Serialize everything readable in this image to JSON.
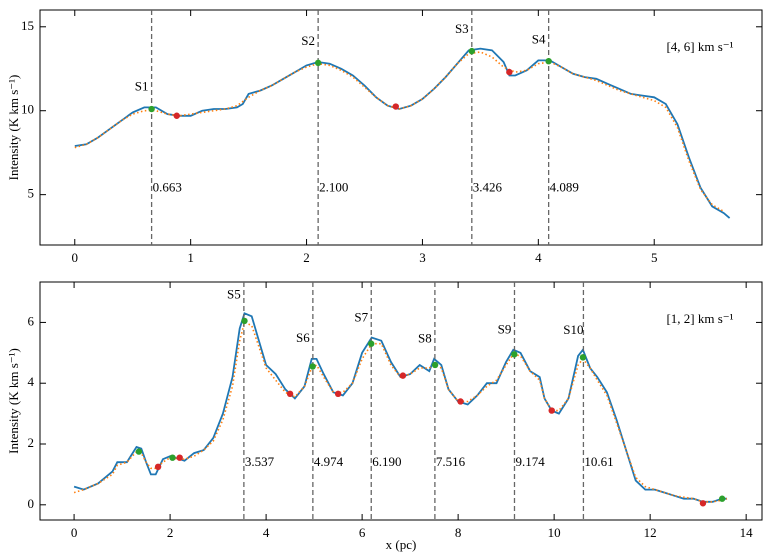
{
  "chart_data": [
    {
      "type": "line",
      "ylabel": "Intensity  (K km s⁻¹)",
      "annotation": "[4, 6] km s⁻¹",
      "xlim": [
        -0.3,
        5.93
      ],
      "ylim": [
        2,
        16
      ],
      "xticks": [
        0,
        1,
        2,
        3,
        4,
        5
      ],
      "yticks": [
        5,
        10,
        15
      ],
      "series": [
        {
          "color": "#1f77b4",
          "style": "solid",
          "x": [
            0,
            0.1,
            0.2,
            0.3,
            0.4,
            0.5,
            0.6,
            0.7,
            0.8,
            0.9,
            1.0,
            1.1,
            1.2,
            1.3,
            1.4,
            1.45,
            1.5,
            1.6,
            1.7,
            1.8,
            1.9,
            2.0,
            2.1,
            2.2,
            2.3,
            2.4,
            2.5,
            2.6,
            2.7,
            2.8,
            2.9,
            3.0,
            3.1,
            3.2,
            3.3,
            3.4,
            3.5,
            3.6,
            3.7,
            3.75,
            3.8,
            3.9,
            4.0,
            4.1,
            4.2,
            4.3,
            4.4,
            4.5,
            4.6,
            4.7,
            4.8,
            4.9,
            5.0,
            5.1,
            5.2,
            5.3,
            5.4,
            5.5,
            5.6,
            5.65
          ],
          "values": [
            7.9,
            8.0,
            8.4,
            8.9,
            9.4,
            9.9,
            10.2,
            10.2,
            9.8,
            9.7,
            9.7,
            10.0,
            10.1,
            10.1,
            10.2,
            10.4,
            11.0,
            11.2,
            11.5,
            11.9,
            12.3,
            12.7,
            12.9,
            12.8,
            12.5,
            12.1,
            11.5,
            10.8,
            10.3,
            10.1,
            10.3,
            10.7,
            11.3,
            12.0,
            12.8,
            13.6,
            13.7,
            13.6,
            12.9,
            12.1,
            12.1,
            12.4,
            13.0,
            13.0,
            12.6,
            12.2,
            12.0,
            11.9,
            11.6,
            11.3,
            11.0,
            10.9,
            10.8,
            10.4,
            9.2,
            7.2,
            5.4,
            4.3,
            3.9,
            3.6
          ]
        },
        {
          "color": "#ff7f0e",
          "style": "dotted",
          "x": [
            0,
            0.1,
            0.2,
            0.3,
            0.4,
            0.5,
            0.6,
            0.7,
            0.8,
            0.9,
            1.0,
            1.1,
            1.2,
            1.3,
            1.4,
            1.5,
            1.6,
            1.7,
            1.8,
            1.9,
            2.0,
            2.1,
            2.2,
            2.3,
            2.4,
            2.5,
            2.6,
            2.7,
            2.8,
            2.9,
            3.0,
            3.1,
            3.2,
            3.3,
            3.4,
            3.5,
            3.6,
            3.7,
            3.8,
            3.9,
            4.0,
            4.1,
            4.2,
            4.3,
            4.4,
            4.5,
            4.6,
            4.7,
            4.8,
            4.9,
            5.0,
            5.1,
            5.2,
            5.3,
            5.4,
            5.5,
            5.6
          ],
          "values": [
            7.8,
            8.0,
            8.4,
            8.9,
            9.4,
            9.8,
            10.0,
            10.0,
            9.8,
            9.7,
            9.8,
            9.9,
            10.0,
            10.1,
            10.3,
            10.8,
            11.2,
            11.5,
            11.9,
            12.3,
            12.6,
            12.8,
            12.7,
            12.4,
            12.0,
            11.4,
            10.8,
            10.3,
            10.1,
            10.3,
            10.7,
            11.3,
            12.0,
            12.8,
            13.4,
            13.5,
            13.2,
            12.6,
            12.3,
            12.4,
            12.8,
            12.9,
            12.6,
            12.2,
            12.0,
            11.8,
            11.5,
            11.2,
            11.0,
            10.8,
            10.6,
            10.2,
            9.0,
            7.0,
            5.3,
            4.4,
            4.0
          ]
        }
      ],
      "markers": [
        {
          "color": "#2ca02c",
          "x": [
            0.663,
            2.1,
            3.426,
            4.089
          ],
          "values": [
            10.1,
            12.85,
            13.55,
            12.95
          ]
        },
        {
          "color": "#d62728",
          "x": [
            0.88,
            2.77,
            3.75
          ],
          "values": [
            9.7,
            10.25,
            12.3
          ]
        }
      ],
      "vlines": [
        {
          "name": "S1",
          "value": 0.663,
          "label": "0.663"
        },
        {
          "name": "S2",
          "value": 2.1,
          "label": "2.100"
        },
        {
          "name": "S3",
          "value": 3.426,
          "label": "3.426"
        },
        {
          "name": "S4",
          "value": 4.089,
          "label": "4.089"
        }
      ]
    },
    {
      "type": "line",
      "xlabel": "x (pc)",
      "ylabel": "Intensity  (K km s⁻¹)",
      "annotation": "[1, 2] km s⁻¹",
      "xlim": [
        -0.71,
        14.33
      ],
      "ylim": [
        -0.5,
        7.33
      ],
      "xticks": [
        0,
        2,
        4,
        6,
        8,
        10,
        12,
        14
      ],
      "yticks": [
        0,
        2,
        4,
        6
      ],
      "series": [
        {
          "color": "#1f77b4",
          "style": "solid",
          "x": [
            0,
            0.2,
            0.5,
            0.8,
            0.9,
            1.1,
            1.3,
            1.4,
            1.5,
            1.6,
            1.7,
            1.85,
            2.0,
            2.2,
            2.3,
            2.5,
            2.7,
            2.9,
            3.1,
            3.3,
            3.45,
            3.55,
            3.7,
            3.85,
            4.0,
            4.2,
            4.4,
            4.6,
            4.8,
            4.95,
            5.05,
            5.2,
            5.4,
            5.6,
            5.8,
            6.0,
            6.2,
            6.4,
            6.6,
            6.8,
            7.0,
            7.2,
            7.4,
            7.5,
            7.65,
            7.8,
            8.0,
            8.2,
            8.4,
            8.6,
            8.8,
            9.0,
            9.15,
            9.3,
            9.5,
            9.7,
            9.8,
            9.95,
            10.1,
            10.3,
            10.5,
            10.6,
            10.75,
            10.9,
            11.1,
            11.3,
            11.5,
            11.7,
            11.9,
            12.1,
            12.3,
            12.5,
            12.7,
            12.9,
            13.1,
            13.3,
            13.5,
            13.6
          ],
          "values": [
            0.6,
            0.5,
            0.7,
            1.1,
            1.4,
            1.4,
            1.9,
            1.85,
            1.4,
            1.0,
            1.0,
            1.5,
            1.6,
            1.5,
            1.45,
            1.7,
            1.8,
            2.2,
            3.0,
            4.2,
            5.8,
            6.3,
            6.2,
            5.4,
            4.6,
            4.3,
            3.8,
            3.5,
            3.9,
            4.8,
            4.8,
            4.3,
            3.7,
            3.6,
            4.0,
            5.0,
            5.5,
            5.4,
            4.7,
            4.2,
            4.3,
            4.6,
            4.4,
            4.8,
            4.6,
            3.8,
            3.4,
            3.3,
            3.6,
            4.0,
            4.0,
            4.7,
            5.1,
            5.0,
            4.4,
            4.2,
            3.5,
            3.1,
            3.0,
            3.5,
            4.9,
            5.1,
            4.5,
            4.2,
            3.7,
            2.8,
            1.8,
            0.8,
            0.5,
            0.5,
            0.4,
            0.3,
            0.2,
            0.2,
            0.1,
            0.1,
            0.2,
            0.2
          ]
        },
        {
          "color": "#ff7f0e",
          "style": "dotted",
          "x": [
            0,
            0.2,
            0.5,
            0.8,
            0.9,
            1.1,
            1.3,
            1.4,
            1.5,
            1.6,
            1.7,
            1.85,
            2.0,
            2.2,
            2.3,
            2.5,
            2.7,
            2.9,
            3.1,
            3.3,
            3.45,
            3.55,
            3.7,
            3.85,
            4.0,
            4.2,
            4.4,
            4.6,
            4.8,
            4.95,
            5.05,
            5.2,
            5.4,
            5.6,
            5.8,
            6.0,
            6.2,
            6.4,
            6.6,
            6.8,
            7.0,
            7.2,
            7.4,
            7.5,
            7.65,
            7.8,
            8.0,
            8.2,
            8.4,
            8.6,
            8.8,
            9.0,
            9.15,
            9.3,
            9.5,
            9.7,
            9.8,
            9.95,
            10.1,
            10.3,
            10.5,
            10.6,
            10.75,
            10.9,
            11.1,
            11.3,
            11.5,
            11.7,
            11.9,
            12.1,
            12.3,
            12.5,
            12.7,
            12.9,
            13.1,
            13.3,
            13.5,
            13.6
          ],
          "values": [
            0.4,
            0.5,
            0.7,
            1.0,
            1.3,
            1.4,
            1.75,
            1.7,
            1.4,
            1.2,
            1.2,
            1.4,
            1.55,
            1.5,
            1.5,
            1.6,
            1.8,
            2.1,
            2.8,
            3.9,
            5.4,
            6.0,
            5.9,
            5.2,
            4.5,
            4.1,
            3.7,
            3.55,
            3.9,
            4.5,
            4.6,
            4.2,
            3.7,
            3.7,
            4.0,
            4.8,
            5.3,
            5.3,
            4.6,
            4.2,
            4.3,
            4.5,
            4.5,
            4.6,
            4.5,
            3.8,
            3.4,
            3.4,
            3.6,
            3.9,
            4.1,
            4.6,
            4.95,
            4.9,
            4.4,
            4.1,
            3.5,
            3.1,
            3.1,
            3.5,
            4.6,
            4.8,
            4.5,
            4.1,
            3.6,
            2.7,
            1.8,
            0.9,
            0.6,
            0.5,
            0.4,
            0.3,
            0.25,
            0.2,
            0.1,
            0.1,
            0.15,
            0.2
          ]
        }
      ],
      "markers": [
        {
          "color": "#2ca02c",
          "x": [
            1.35,
            2.05,
            3.55,
            4.97,
            6.19,
            7.52,
            9.17,
            10.6,
            13.5
          ],
          "values": [
            1.75,
            1.55,
            6.05,
            4.55,
            5.3,
            4.6,
            4.95,
            4.85,
            0.2
          ]
        },
        {
          "color": "#d62728",
          "x": [
            1.75,
            2.2,
            4.5,
            5.5,
            6.85,
            8.05,
            9.95,
            13.1
          ],
          "values": [
            1.25,
            1.55,
            3.65,
            3.65,
            4.25,
            3.4,
            3.1,
            0.05
          ]
        }
      ],
      "vlines": [
        {
          "name": "S5",
          "value": 3.537,
          "label": "3.537"
        },
        {
          "name": "S6",
          "value": 4.974,
          "label": "4.974"
        },
        {
          "name": "S7",
          "value": 6.19,
          "label": "6.190"
        },
        {
          "name": "S8",
          "value": 7.516,
          "label": "7.516"
        },
        {
          "name": "S9",
          "value": 9.174,
          "label": "9.174"
        },
        {
          "name": "S10",
          "value": 10.61,
          "label": "10.61"
        }
      ]
    }
  ]
}
